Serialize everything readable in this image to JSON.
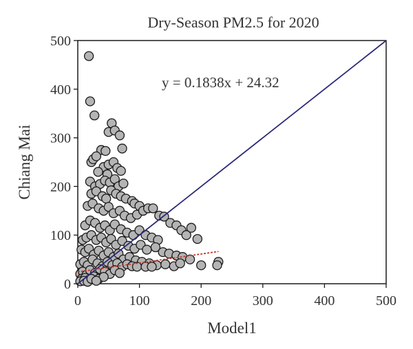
{
  "chart_data": {
    "type": "scatter",
    "title": "Dry-Season PM2.5 for 2020",
    "xlabel": "Model1",
    "ylabel": "Chiang Mai",
    "xlim": [
      0,
      500
    ],
    "ylim": [
      0,
      500
    ],
    "xticks": [
      "0",
      "100",
      "200",
      "300",
      "400",
      "500"
    ],
    "yticks": [
      "0",
      "100",
      "200",
      "300",
      "400",
      "500"
    ],
    "grid": false,
    "marker_fill": "#b4b4b4",
    "marker_edge": "#1a1a1a",
    "equation": "y = 0.1838x + 24.32",
    "identity_line": {
      "color": "#2b2a7a",
      "x": [
        0,
        500
      ],
      "y": [
        0,
        500
      ]
    },
    "regression_line": {
      "color": "#c0392b",
      "slope": 0.1838,
      "intercept": 24.32,
      "x_range": [
        0,
        228
      ]
    },
    "points": [
      [
        18,
        468
      ],
      [
        20,
        375
      ],
      [
        27,
        346
      ],
      [
        55,
        330
      ],
      [
        50,
        312
      ],
      [
        60,
        315
      ],
      [
        68,
        305
      ],
      [
        38,
        275
      ],
      [
        45,
        273
      ],
      [
        72,
        278
      ],
      [
        22,
        250
      ],
      [
        25,
        256
      ],
      [
        30,
        262
      ],
      [
        42,
        240
      ],
      [
        50,
        245
      ],
      [
        58,
        250
      ],
      [
        64,
        238
      ],
      [
        33,
        230
      ],
      [
        48,
        225
      ],
      [
        70,
        232
      ],
      [
        20,
        210
      ],
      [
        28,
        200
      ],
      [
        36,
        205
      ],
      [
        44,
        212
      ],
      [
        52,
        208
      ],
      [
        60,
        215
      ],
      [
        66,
        200
      ],
      [
        74,
        206
      ],
      [
        22,
        185
      ],
      [
        30,
        190
      ],
      [
        40,
        180
      ],
      [
        46,
        175
      ],
      [
        54,
        192
      ],
      [
        62,
        185
      ],
      [
        70,
        180
      ],
      [
        78,
        175
      ],
      [
        88,
        170
      ],
      [
        92,
        165
      ],
      [
        100,
        160
      ],
      [
        16,
        160
      ],
      [
        24,
        165
      ],
      [
        34,
        155
      ],
      [
        42,
        150
      ],
      [
        50,
        158
      ],
      [
        58,
        145
      ],
      [
        68,
        150
      ],
      [
        76,
        140
      ],
      [
        86,
        135
      ],
      [
        96,
        142
      ],
      [
        106,
        150
      ],
      [
        114,
        155
      ],
      [
        122,
        155
      ],
      [
        132,
        140
      ],
      [
        140,
        138
      ],
      [
        150,
        125
      ],
      [
        160,
        120
      ],
      [
        168,
        110
      ],
      [
        176,
        100
      ],
      [
        184,
        115
      ],
      [
        194,
        92
      ],
      [
        12,
        120
      ],
      [
        20,
        130
      ],
      [
        28,
        125
      ],
      [
        36,
        115
      ],
      [
        44,
        120
      ],
      [
        52,
        110
      ],
      [
        60,
        122
      ],
      [
        70,
        112
      ],
      [
        80,
        105
      ],
      [
        90,
        100
      ],
      [
        100,
        110
      ],
      [
        110,
        100
      ],
      [
        120,
        95
      ],
      [
        130,
        90
      ],
      [
        8,
        90
      ],
      [
        14,
        95
      ],
      [
        22,
        100
      ],
      [
        30,
        90
      ],
      [
        38,
        95
      ],
      [
        46,
        85
      ],
      [
        54,
        92
      ],
      [
        62,
        80
      ],
      [
        72,
        88
      ],
      [
        82,
        78
      ],
      [
        92,
        72
      ],
      [
        102,
        80
      ],
      [
        112,
        70
      ],
      [
        126,
        75
      ],
      [
        138,
        65
      ],
      [
        148,
        62
      ],
      [
        160,
        58
      ],
      [
        170,
        55
      ],
      [
        182,
        50
      ],
      [
        6,
        70
      ],
      [
        12,
        65
      ],
      [
        18,
        72
      ],
      [
        26,
        60
      ],
      [
        34,
        68
      ],
      [
        42,
        58
      ],
      [
        50,
        65
      ],
      [
        58,
        55
      ],
      [
        66,
        62
      ],
      [
        74,
        50
      ],
      [
        84,
        55
      ],
      [
        94,
        48
      ],
      [
        104,
        45
      ],
      [
        116,
        42
      ],
      [
        128,
        38
      ],
      [
        142,
        40
      ],
      [
        156,
        36
      ],
      [
        166,
        42
      ],
      [
        200,
        38
      ],
      [
        228,
        45
      ],
      [
        226,
        38
      ],
      [
        4,
        40
      ],
      [
        10,
        45
      ],
      [
        16,
        38
      ],
      [
        24,
        50
      ],
      [
        32,
        42
      ],
      [
        40,
        36
      ],
      [
        48,
        45
      ],
      [
        56,
        38
      ],
      [
        64,
        42
      ],
      [
        72,
        35
      ],
      [
        80,
        40
      ],
      [
        88,
        36
      ],
      [
        96,
        35
      ],
      [
        110,
        35
      ],
      [
        120,
        35
      ],
      [
        4,
        20
      ],
      [
        8,
        25
      ],
      [
        14,
        18
      ],
      [
        20,
        28
      ],
      [
        28,
        22
      ],
      [
        36,
        30
      ],
      [
        44,
        25
      ],
      [
        52,
        20
      ],
      [
        60,
        28
      ],
      [
        68,
        22
      ],
      [
        6,
        10
      ],
      [
        12,
        12
      ],
      [
        18,
        8
      ],
      [
        26,
        15
      ],
      [
        34,
        10
      ],
      [
        42,
        14
      ],
      [
        4,
        5
      ],
      [
        10,
        6
      ],
      [
        16,
        4
      ],
      [
        22,
        10
      ],
      [
        30,
        6
      ]
    ]
  }
}
